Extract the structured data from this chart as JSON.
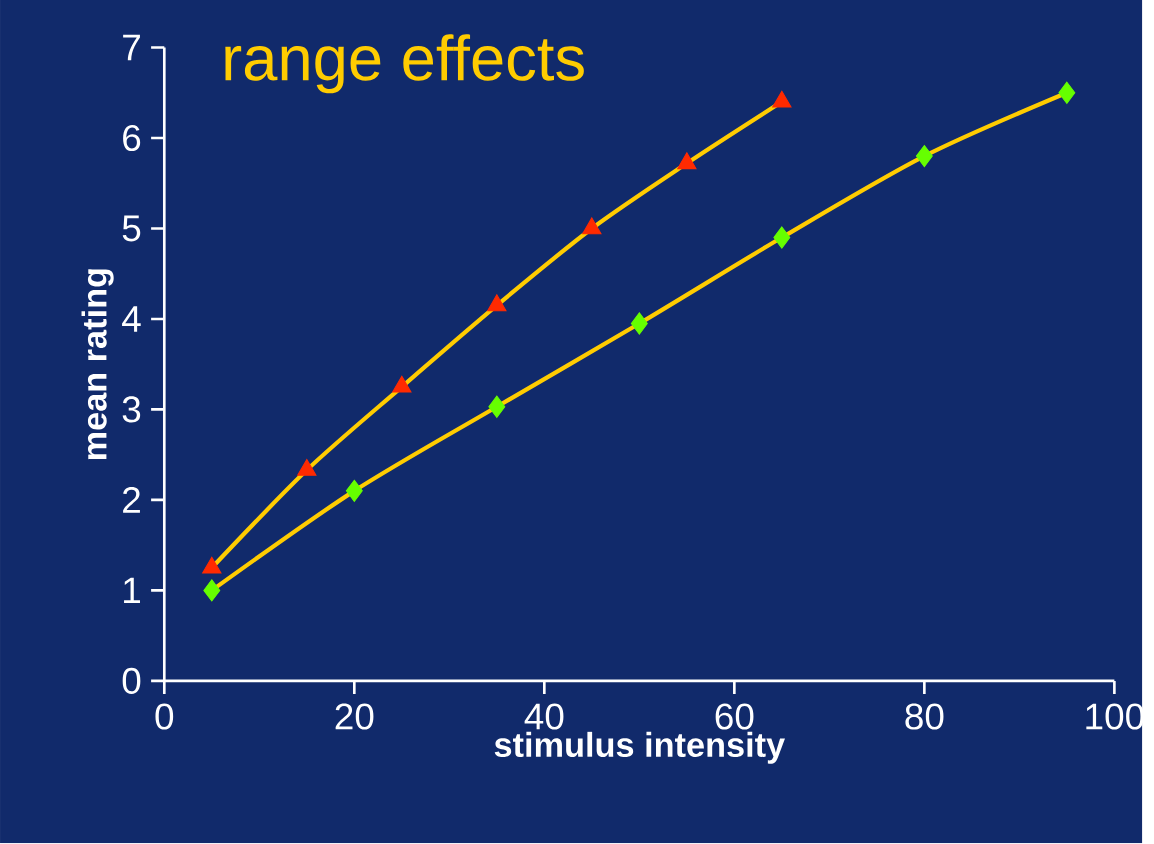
{
  "chart_data": {
    "type": "line",
    "title": "range effects",
    "xlabel": "stimulus intensity",
    "ylabel": "mean rating",
    "xlim": [
      0,
      100
    ],
    "xticks": [
      0,
      20,
      40,
      60,
      80,
      100
    ],
    "ylim": [
      0,
      7
    ],
    "yticks": [
      0,
      1,
      2,
      3,
      4,
      5,
      6,
      7
    ],
    "grid": false,
    "series": [
      {
        "marker": "none",
        "color": "#ffcc00",
        "x": [
          5,
          15,
          25,
          35,
          45,
          55,
          65
        ],
        "values": [
          1.25,
          2.33,
          3.25,
          4.15,
          5.0,
          5.72,
          6.4
        ]
      },
      {
        "marker": "none",
        "color": "#ffcc00",
        "x": [
          5,
          20,
          35,
          50,
          65,
          80,
          95
        ],
        "values": [
          1.0,
          2.1,
          3.03,
          3.95,
          4.9,
          5.8,
          6.5
        ]
      },
      {
        "type": "scatter",
        "marker": "triangle",
        "color": "#ff2a00",
        "x": [
          5,
          15,
          25,
          35,
          45,
          55,
          65
        ],
        "values": [
          1.25,
          2.33,
          3.25,
          4.15,
          5.0,
          5.72,
          6.4
        ]
      },
      {
        "type": "scatter",
        "marker": "diamond",
        "color": "#66ff00",
        "x": [
          5,
          20,
          35,
          50,
          65,
          80,
          95
        ],
        "values": [
          1.0,
          2.1,
          3.03,
          3.95,
          4.9,
          5.8,
          6.5
        ]
      }
    ]
  }
}
